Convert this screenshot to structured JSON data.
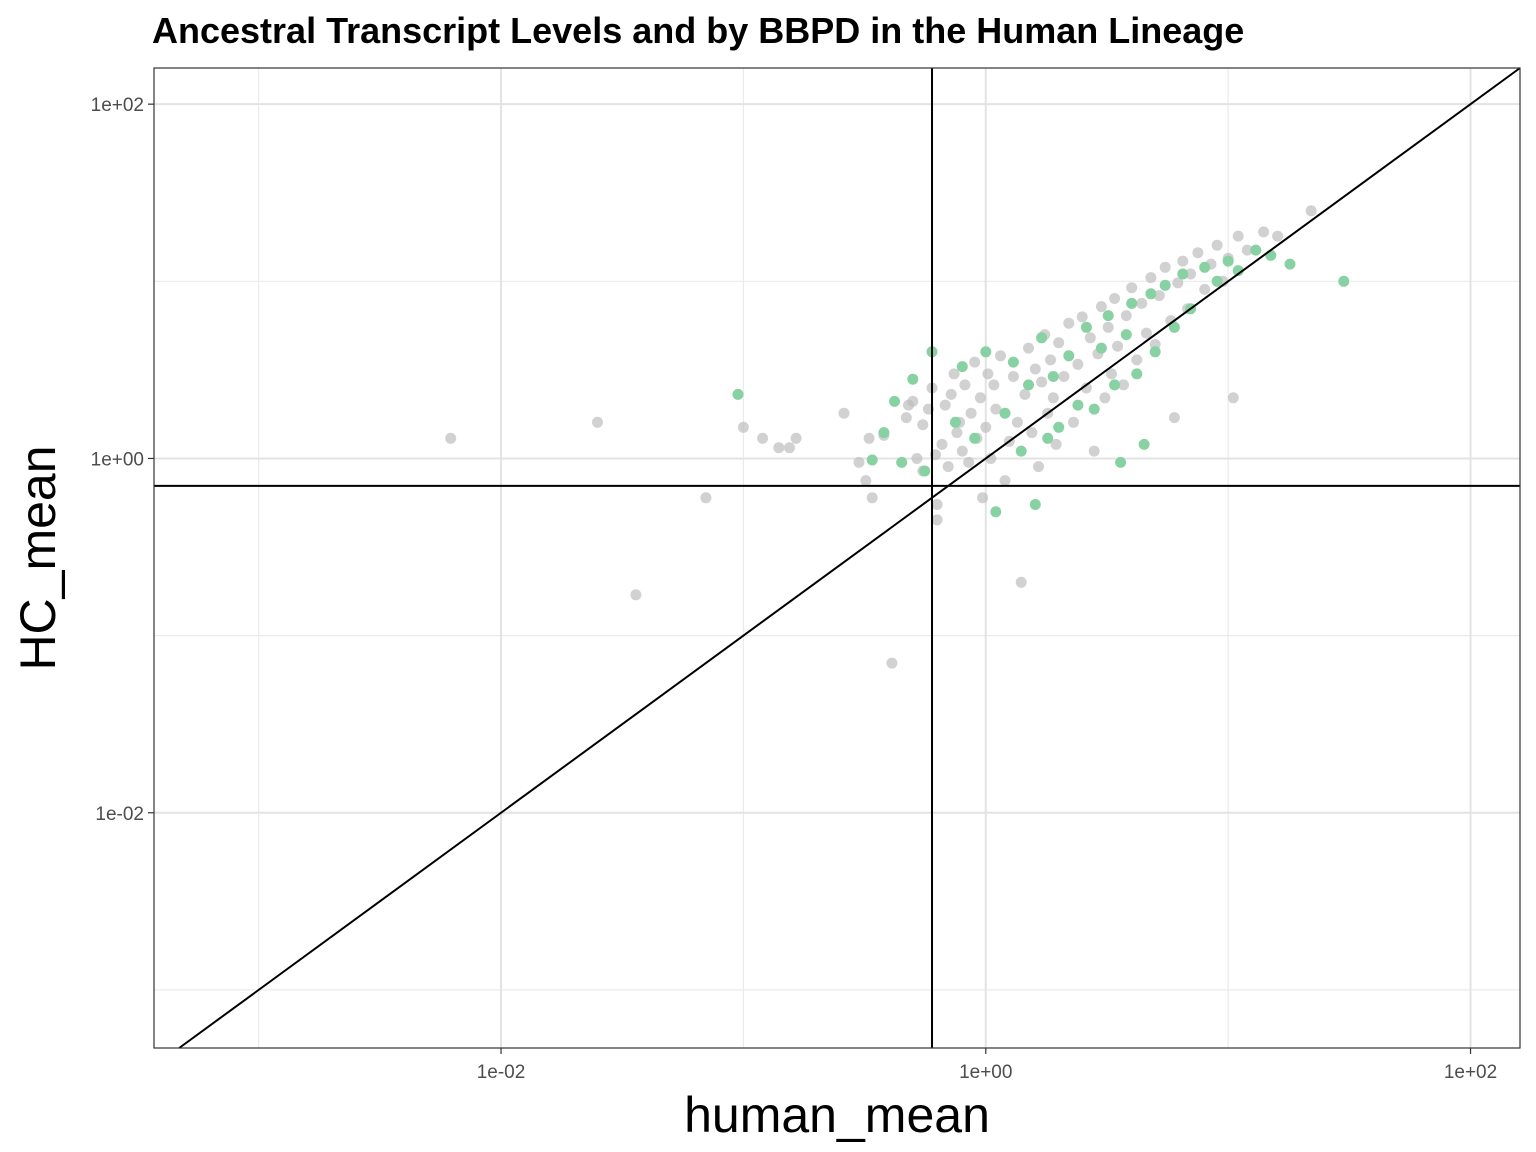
{
  "chart_data": {
    "type": "scatter",
    "title": "Ancestral Transcript Levels and by BBPD in the Human Lineage",
    "xlabel": "human_mean",
    "ylabel": "HC_mean",
    "xscale": "log10",
    "yscale": "log10",
    "xlim": [
      0.00037,
      160
    ],
    "ylim": [
      0.00047,
      160
    ],
    "x_ticks": [
      0.01,
      1,
      100
    ],
    "x_tick_labels": [
      "1e-02",
      "1e+00",
      "1e+02"
    ],
    "y_ticks": [
      0.01,
      1,
      100
    ],
    "y_tick_labels": [
      "1e-02",
      "1e+00",
      "1e+02"
    ],
    "grid": true,
    "reference_lines": {
      "vline_x": 0.6,
      "hline_y": 0.7,
      "identity_line": true
    },
    "colors": {
      "background_points": "#bebebe",
      "highlight_points": "#88d1a3",
      "lines": "#000000"
    },
    "series": [
      {
        "color": "#bebebe",
        "points": [
          [
            0.0062,
            1.3
          ],
          [
            0.025,
            1.6
          ],
          [
            0.036,
            0.17
          ],
          [
            0.07,
            0.6
          ],
          [
            0.1,
            1.5
          ],
          [
            0.12,
            1.3
          ],
          [
            0.14,
            1.15
          ],
          [
            0.155,
            1.15
          ],
          [
            0.165,
            1.3
          ],
          [
            0.26,
            1.8
          ],
          [
            0.3,
            0.95
          ],
          [
            0.32,
            0.75
          ],
          [
            0.33,
            1.3
          ],
          [
            0.34,
            0.6
          ],
          [
            0.38,
            1.35
          ],
          [
            0.41,
            0.07
          ],
          [
            0.47,
            1.7
          ],
          [
            0.48,
            2.0
          ],
          [
            0.5,
            2.1
          ],
          [
            0.52,
            1.0
          ],
          [
            0.55,
            1.55
          ],
          [
            0.55,
            0.85
          ],
          [
            0.58,
            1.9
          ],
          [
            0.6,
            2.5
          ],
          [
            0.62,
            1.05
          ],
          [
            0.63,
            0.55
          ],
          [
            0.63,
            0.45
          ],
          [
            0.66,
            1.2
          ],
          [
            0.68,
            2.0
          ],
          [
            0.7,
            0.9
          ],
          [
            0.72,
            2.3
          ],
          [
            0.74,
            3.0
          ],
          [
            0.76,
            1.4
          ],
          [
            0.78,
            1.6
          ],
          [
            0.8,
            1.1
          ],
          [
            0.82,
            2.6
          ],
          [
            0.85,
            0.95
          ],
          [
            0.87,
            1.8
          ],
          [
            0.9,
            3.5
          ],
          [
            0.92,
            1.3
          ],
          [
            0.95,
            2.2
          ],
          [
            0.97,
            0.6
          ],
          [
            1.0,
            1.5
          ],
          [
            1.02,
            3.0
          ],
          [
            1.05,
            1.0
          ],
          [
            1.08,
            2.6
          ],
          [
            1.1,
            1.9
          ],
          [
            1.15,
            3.8
          ],
          [
            1.2,
            0.75
          ],
          [
            1.25,
            1.25
          ],
          [
            1.3,
            2.9
          ],
          [
            1.35,
            1.6
          ],
          [
            1.4,
            0.2
          ],
          [
            1.45,
            2.3
          ],
          [
            1.5,
            4.2
          ],
          [
            1.55,
            1.4
          ],
          [
            1.6,
            3.2
          ],
          [
            1.65,
            0.9
          ],
          [
            1.7,
            2.7
          ],
          [
            1.75,
            5.0
          ],
          [
            1.8,
            1.8
          ],
          [
            1.85,
            3.6
          ],
          [
            1.9,
            2.2
          ],
          [
            1.95,
            1.2
          ],
          [
            2.0,
            4.5
          ],
          [
            2.1,
            2.9
          ],
          [
            2.2,
            5.8
          ],
          [
            2.3,
            1.6
          ],
          [
            2.4,
            3.4
          ],
          [
            2.5,
            6.3
          ],
          [
            2.6,
            2.5
          ],
          [
            2.7,
            4.8
          ],
          [
            2.8,
            1.1
          ],
          [
            2.9,
            3.9
          ],
          [
            3.0,
            7.2
          ],
          [
            3.1,
            2.2
          ],
          [
            3.2,
            5.5
          ],
          [
            3.3,
            3.0
          ],
          [
            3.4,
            8.0
          ],
          [
            3.5,
            4.3
          ],
          [
            3.7,
            2.6
          ],
          [
            3.8,
            6.4
          ],
          [
            4.0,
            9.2
          ],
          [
            4.2,
            3.6
          ],
          [
            4.4,
            7.5
          ],
          [
            4.6,
            5.1
          ],
          [
            4.8,
            10.5
          ],
          [
            5.0,
            4.4
          ],
          [
            5.2,
            8.3
          ],
          [
            5.5,
            12.0
          ],
          [
            5.8,
            6.0
          ],
          [
            6.0,
            1.7
          ],
          [
            6.2,
            9.8
          ],
          [
            6.5,
            13.0
          ],
          [
            6.8,
            7.0
          ],
          [
            7.0,
            11.0
          ],
          [
            7.5,
            14.5
          ],
          [
            8.0,
            9.0
          ],
          [
            8.5,
            12.5
          ],
          [
            9.0,
            16.0
          ],
          [
            9.5,
            10.0
          ],
          [
            10.0,
            13.5
          ],
          [
            10.5,
            2.2
          ],
          [
            11.0,
            18.0
          ],
          [
            12.0,
            15.0
          ],
          [
            14.0,
            19.0
          ],
          [
            16.0,
            18.0
          ],
          [
            22.0,
            25.0
          ]
        ]
      },
      {
        "color": "#88d1a3",
        "points": [
          [
            0.095,
            2.3
          ],
          [
            0.34,
            0.98
          ],
          [
            0.38,
            1.4
          ],
          [
            0.42,
            2.1
          ],
          [
            0.45,
            0.95
          ],
          [
            0.5,
            2.8
          ],
          [
            0.56,
            0.85
          ],
          [
            0.6,
            4.0
          ],
          [
            0.75,
            1.6
          ],
          [
            0.8,
            3.3
          ],
          [
            0.9,
            1.3
          ],
          [
            1.0,
            4.0
          ],
          [
            1.1,
            0.5
          ],
          [
            1.2,
            1.8
          ],
          [
            1.3,
            3.5
          ],
          [
            1.4,
            1.1
          ],
          [
            1.5,
            2.6
          ],
          [
            1.6,
            0.55
          ],
          [
            1.7,
            4.8
          ],
          [
            1.8,
            1.3
          ],
          [
            1.9,
            2.9
          ],
          [
            2.0,
            1.5
          ],
          [
            2.2,
            3.8
          ],
          [
            2.4,
            2.0
          ],
          [
            2.6,
            5.5
          ],
          [
            2.8,
            1.9
          ],
          [
            3.0,
            4.2
          ],
          [
            3.2,
            6.4
          ],
          [
            3.4,
            2.6
          ],
          [
            3.6,
            0.95
          ],
          [
            3.8,
            5.0
          ],
          [
            4.0,
            7.5
          ],
          [
            4.2,
            3.0
          ],
          [
            4.5,
            1.2
          ],
          [
            4.8,
            8.5
          ],
          [
            5.0,
            4.0
          ],
          [
            5.5,
            9.5
          ],
          [
            6.0,
            5.5
          ],
          [
            6.5,
            11.0
          ],
          [
            7.0,
            7.0
          ],
          [
            8.0,
            12.0
          ],
          [
            9.0,
            10.0
          ],
          [
            10.0,
            13.0
          ],
          [
            11.0,
            11.5
          ],
          [
            13.0,
            15.0
          ],
          [
            15.0,
            14.0
          ],
          [
            18.0,
            12.5
          ],
          [
            30.0,
            10.0
          ]
        ]
      }
    ]
  }
}
